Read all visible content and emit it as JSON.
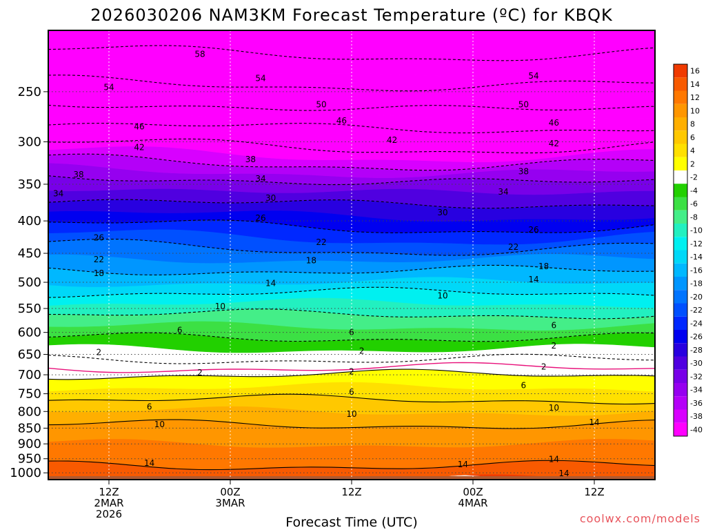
{
  "chart_data": {
    "type": "heatmap",
    "title": "2026030206 NAM3KM Forecast Temperature (ºC) for KBQK",
    "xlabel": "Forecast Time (UTC)",
    "ylabel": "",
    "x_range_hours": [
      0,
      60
    ],
    "y_range_hpa": [
      1025,
      200
    ],
    "x_ticks": [
      {
        "hour": 6,
        "lines": [
          "12Z",
          "2MAR",
          "2026"
        ]
      },
      {
        "hour": 18,
        "lines": [
          "00Z",
          "3MAR"
        ]
      },
      {
        "hour": 30,
        "lines": [
          "12Z"
        ]
      },
      {
        "hour": 42,
        "lines": [
          "00Z",
          "4MAR"
        ]
      },
      {
        "hour": 54,
        "lines": [
          "12Z"
        ]
      }
    ],
    "y_ticks": [
      250,
      300,
      350,
      400,
      450,
      500,
      550,
      600,
      650,
      700,
      750,
      800,
      850,
      900,
      950,
      1000
    ],
    "grid": true,
    "freezing_line_color": "#e8107a",
    "profile_pressure_hpa": [
      1025,
      1000,
      950,
      900,
      850,
      800,
      750,
      700,
      675,
      650,
      600,
      550,
      500,
      450,
      400,
      350,
      300,
      250,
      200
    ],
    "profile_temp_c": [
      15,
      14.5,
      13.5,
      12,
      10.5,
      8,
      5,
      2,
      -1,
      -3,
      -7,
      -11,
      -16,
      -21,
      -27,
      -33,
      -43,
      -53,
      -61
    ],
    "colorbar": {
      "labels": [
        "16",
        "14",
        "12",
        "10",
        "8",
        "6",
        "4",
        "2",
        "-2",
        "-4",
        "-6",
        "-8",
        "-10",
        "-12",
        "-14",
        "-16",
        "-18",
        "-20",
        "-22",
        "-24",
        "-26",
        "-28",
        "-30",
        "-32",
        "-34",
        "-36",
        "-38",
        "-40"
      ],
      "colors": [
        "#f03a00",
        "#f85a00",
        "#ff7800",
        "#ff9600",
        "#ffaf00",
        "#ffc800",
        "#ffe000",
        "#ffff00",
        "#ffffff",
        "#22d000",
        "#3ce044",
        "#44ee88",
        "#22f0c0",
        "#00f0f0",
        "#00d8f8",
        "#00b8ff",
        "#0096ff",
        "#0074ff",
        "#0050ff",
        "#0028ff",
        "#0000f0",
        "#2800e0",
        "#5000e0",
        "#7800e8",
        "#9600f0",
        "#b400f8",
        "#d800ff",
        "#ff00ff"
      ],
      "surface_color": "#b05a30"
    },
    "contour_labels": [
      {
        "value": "58",
        "hour": 15,
        "p": 218
      },
      {
        "value": "54",
        "hour": 6,
        "p": 246
      },
      {
        "value": "54",
        "hour": 21,
        "p": 238
      },
      {
        "value": "54",
        "hour": 48,
        "p": 236
      },
      {
        "value": "50",
        "hour": 27,
        "p": 262
      },
      {
        "value": "50",
        "hour": 47,
        "p": 262
      },
      {
        "value": "46",
        "hour": 9,
        "p": 284
      },
      {
        "value": "46",
        "hour": 29,
        "p": 278
      },
      {
        "value": "46",
        "hour": 50,
        "p": 280
      },
      {
        "value": "42",
        "hour": 9,
        "p": 306
      },
      {
        "value": "42",
        "hour": 34,
        "p": 298
      },
      {
        "value": "42",
        "hour": 50,
        "p": 302
      },
      {
        "value": "38",
        "hour": 3,
        "p": 338
      },
      {
        "value": "38",
        "hour": 20,
        "p": 320
      },
      {
        "value": "38",
        "hour": 47,
        "p": 334
      },
      {
        "value": "34",
        "hour": 1,
        "p": 362
      },
      {
        "value": "34",
        "hour": 21,
        "p": 343
      },
      {
        "value": "34",
        "hour": 45,
        "p": 360
      },
      {
        "value": "30",
        "hour": 22,
        "p": 368
      },
      {
        "value": "30",
        "hour": 39,
        "p": 388
      },
      {
        "value": "26",
        "hour": 5,
        "p": 425
      },
      {
        "value": "26",
        "hour": 21,
        "p": 396
      },
      {
        "value": "26",
        "hour": 48,
        "p": 413
      },
      {
        "value": "22",
        "hour": 5,
        "p": 460
      },
      {
        "value": "22",
        "hour": 27,
        "p": 432
      },
      {
        "value": "22",
        "hour": 46,
        "p": 440
      },
      {
        "value": "18",
        "hour": 5,
        "p": 484
      },
      {
        "value": "18",
        "hour": 26,
        "p": 462
      },
      {
        "value": "18",
        "hour": 49,
        "p": 472
      },
      {
        "value": "14",
        "hour": 22,
        "p": 502
      },
      {
        "value": "14",
        "hour": 48,
        "p": 495
      },
      {
        "value": "10",
        "hour": 17,
        "p": 546
      },
      {
        "value": "10",
        "hour": 39,
        "p": 525
      },
      {
        "value": "6",
        "hour": 13,
        "p": 595
      },
      {
        "value": "6",
        "hour": 30,
        "p": 600
      },
      {
        "value": "6",
        "hour": 50,
        "p": 585
      },
      {
        "value": "2",
        "hour": 5,
        "p": 645
      },
      {
        "value": "2",
        "hour": 31,
        "p": 642
      },
      {
        "value": "2",
        "hour": 50,
        "p": 630
      },
      {
        "value": "2",
        "hour": 15,
        "p": 695
      },
      {
        "value": "2",
        "hour": 30,
        "p": 692
      },
      {
        "value": "2",
        "hour": 49,
        "p": 680
      },
      {
        "value": "6",
        "hour": 30,
        "p": 745
      },
      {
        "value": "6",
        "hour": 10,
        "p": 787
      },
      {
        "value": "6",
        "hour": 47,
        "p": 728
      },
      {
        "value": "10",
        "hour": 11,
        "p": 838
      },
      {
        "value": "10",
        "hour": 30,
        "p": 808
      },
      {
        "value": "10",
        "hour": 50,
        "p": 789
      },
      {
        "value": "14",
        "hour": 54,
        "p": 832
      },
      {
        "value": "14",
        "hour": 10,
        "p": 965
      },
      {
        "value": "14",
        "hour": 41,
        "p": 970
      },
      {
        "value": "14",
        "hour": 50,
        "p": 952
      },
      {
        "value": "14",
        "hour": 51,
        "p": 1002
      }
    ]
  },
  "credit": "coolwx.com/models"
}
